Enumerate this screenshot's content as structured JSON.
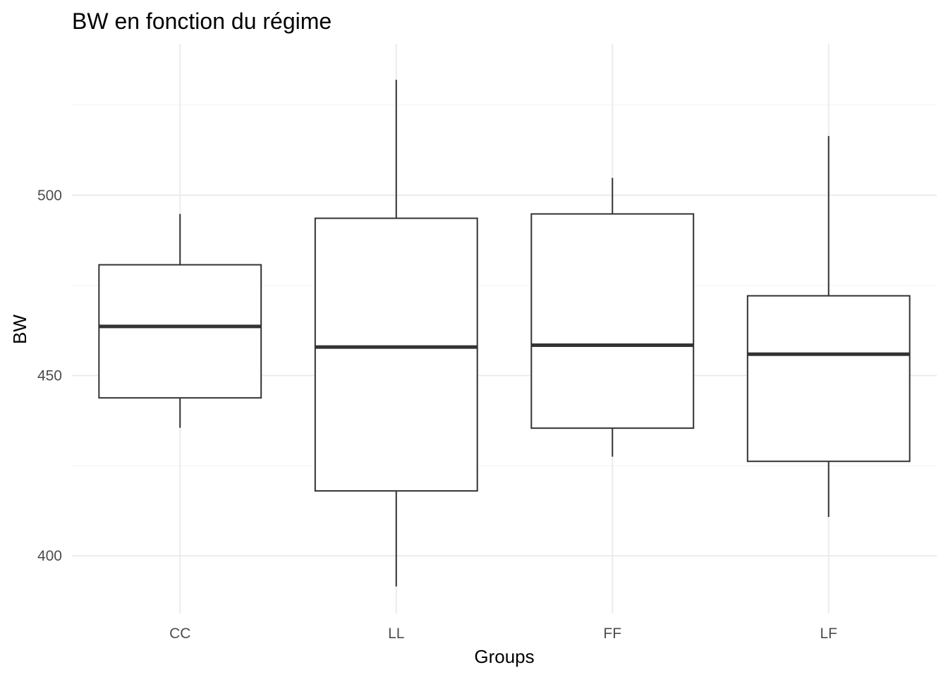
{
  "chart_data": {
    "type": "boxplot",
    "title": "BW en fonction du régime",
    "xlabel": "Groups",
    "ylabel": "BW",
    "categories": [
      "CC",
      "LL",
      "FF",
      "LF"
    ],
    "boxes": [
      {
        "category": "CC",
        "min": 435.5,
        "q1": 443.8,
        "median": 463.6,
        "q3": 480.7,
        "max": 494.8
      },
      {
        "category": "LL",
        "min": 391.5,
        "q1": 418.0,
        "median": 457.9,
        "q3": 493.6,
        "max": 532.0
      },
      {
        "category": "FF",
        "min": 427.5,
        "q1": 435.4,
        "median": 458.4,
        "q3": 494.8,
        "max": 504.8
      },
      {
        "category": "LF",
        "min": 410.8,
        "q1": 426.2,
        "median": 455.9,
        "q3": 472.1,
        "max": 516.4
      }
    ],
    "yticks": [
      400,
      450,
      500
    ],
    "ylim": [
      384,
      542
    ],
    "grid": true
  }
}
